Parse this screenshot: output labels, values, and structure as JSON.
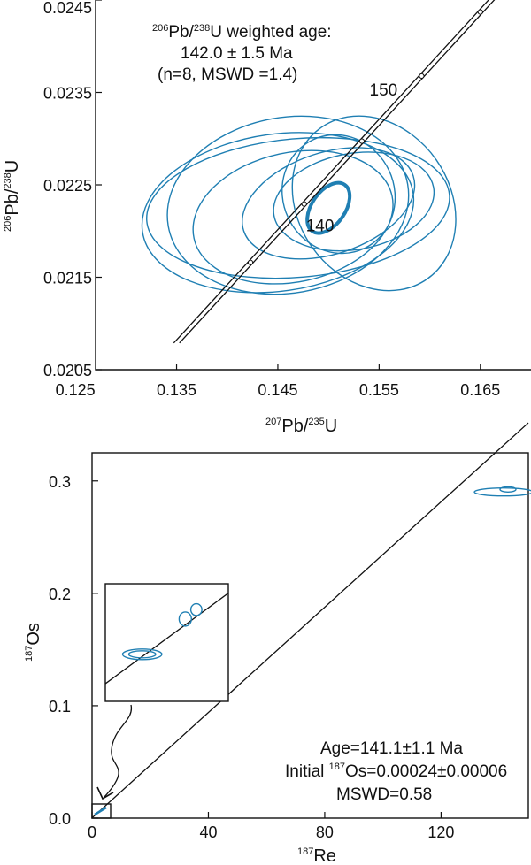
{
  "chart_data": [
    {
      "type": "scatter",
      "title": "",
      "xlabel": {
        "sup": "207",
        "base": "Pb/",
        "sup2": "235",
        "base2": "U"
      },
      "ylabel": {
        "sup": "206",
        "base": "Pb/",
        "sup2": "238",
        "base2": "U"
      },
      "xlim": [
        0.127,
        0.17
      ],
      "ylim": [
        0.0205,
        0.0245
      ],
      "xticks": [
        "0.125",
        "0.135",
        "0.145",
        "0.155",
        "0.165"
      ],
      "xtick_values": [
        0.125,
        0.135,
        0.145,
        0.155,
        0.165
      ],
      "yticks": [
        "0.0205",
        "0.0215",
        "0.0225",
        "0.0235",
        "0.0245"
      ],
      "ytick_values": [
        0.0205,
        0.0215,
        0.0225,
        0.0235,
        0.0245
      ],
      "annotation": {
        "line1_sup": "206",
        "line1_a": "Pb/",
        "line1_sup2": "238",
        "line1_b": "U weighted age:",
        "line2": "142.0 ± 1.5 Ma",
        "line3": "(n=8, MSWD =1.4)"
      },
      "concordia_labels": [
        {
          "text": "150",
          "x": 0.1579,
          "y": 0.02355
        },
        {
          "text": "140",
          "x": 0.1476,
          "y": 0.02195
        }
      ],
      "concordia_markers": [
        {
          "x": 0.1423,
          "y": 0.02166
        },
        {
          "x": 0.1476,
          "y": 0.02195
        },
        {
          "x": 0.1533,
          "y": 0.02275
        },
        {
          "x": 0.1592,
          "y": 0.02355
        },
        {
          "x": 0.165,
          "y": 0.02437
        }
      ],
      "ellipses": [
        {
          "cx": 0.145,
          "cy": 0.0222,
          "rx": 0.0135,
          "ry": 0.00085,
          "angle": 8
        },
        {
          "cx": 0.147,
          "cy": 0.02225,
          "rx": 0.015,
          "ry": 0.00075,
          "angle": 5
        },
        {
          "cx": 0.146,
          "cy": 0.02228,
          "rx": 0.012,
          "ry": 0.00095,
          "angle": 10
        },
        {
          "cx": 0.15,
          "cy": 0.0223,
          "rx": 0.0088,
          "ry": 0.00055,
          "angle": 18
        },
        {
          "cx": 0.1525,
          "cy": 0.02232,
          "rx": 0.008,
          "ry": 0.00052,
          "angle": 10
        },
        {
          "cx": 0.1545,
          "cy": 0.0223,
          "rx": 0.0075,
          "ry": 0.001,
          "angle": 35
        },
        {
          "cx": 0.1465,
          "cy": 0.02215,
          "rx": 0.01,
          "ry": 0.0007,
          "angle": 12
        },
        {
          "cx": 0.151,
          "cy": 0.0224,
          "rx": 0.0055,
          "ry": 0.00065,
          "angle": 25
        }
      ],
      "mean_ellipse": {
        "cx": 0.15,
        "cy": 0.02225,
        "rx": 0.0028,
        "ry": 0.00018,
        "angle": 55
      }
    },
    {
      "type": "scatter",
      "title": "",
      "xlabel": {
        "sup": "187",
        "base": "Re"
      },
      "ylabel": {
        "sup": "187",
        "base": "Os"
      },
      "xlim": [
        0,
        150
      ],
      "ylim": [
        0,
        0.325
      ],
      "xticks": [
        "0",
        "40",
        "80",
        "120"
      ],
      "xtick_values": [
        0,
        40,
        80,
        120
      ],
      "yticks": [
        "0.0",
        "0.1",
        "0.2",
        "0.3"
      ],
      "ytick_values": [
        0.0,
        0.1,
        0.2,
        0.3
      ],
      "isochron": {
        "age": 141.1,
        "initial": 0.00024,
        "slope": 0.002343
      },
      "annotation": {
        "line1": "Age=141.1±1.1 Ma",
        "line2_a": "Initial ",
        "line2_sup": "187",
        "line2_b": "Os=0.00024±0.00006",
        "line3": "MSWD=0.58"
      },
      "points": [
        {
          "x": 141.5,
          "y": 0.2902
        },
        {
          "x": 143.0,
          "y": 0.2925
        }
      ],
      "inset_points": [
        {
          "x": 0.3,
          "y": 0.4,
          "rx": 0.16,
          "ry": 0.045
        },
        {
          "x": 0.3,
          "y": 0.4,
          "rx": 0.11,
          "ry": 0.03
        },
        {
          "x": 0.65,
          "y": 0.7,
          "rx": 0.05,
          "ry": 0.06
        },
        {
          "x": 0.74,
          "y": 0.78,
          "rx": 0.045,
          "ry": 0.05
        }
      ]
    }
  ]
}
